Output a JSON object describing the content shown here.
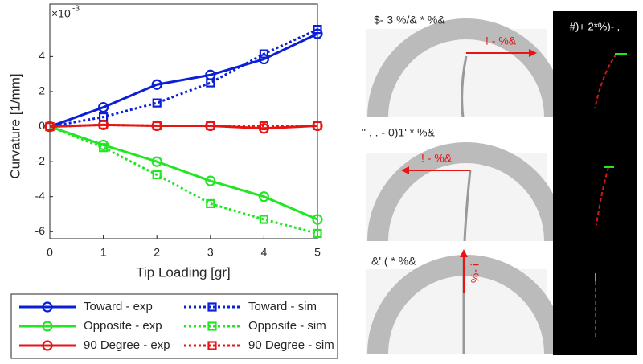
{
  "chart_data": {
    "type": "line",
    "xlabel": "Tip Loading [gr]",
    "ylabel": "Curvature [1/mm]",
    "y_scale_label": {
      "base": "×10",
      "exponent": "-3"
    },
    "x": [
      0,
      1,
      2,
      3,
      4,
      5
    ],
    "xlim": [
      0,
      5
    ],
    "xticks": [
      0,
      1,
      2,
      3,
      4,
      5
    ],
    "ylim": [
      -6.4,
      7
    ],
    "yticks": [
      -6,
      -4,
      -2,
      0,
      2,
      4
    ],
    "legend": "below",
    "series": [
      {
        "name": "Toward - exp",
        "color": "#0a1fd6",
        "marker": "circle",
        "line_style": "solid",
        "values": [
          0,
          1.1,
          2.4,
          2.95,
          3.85,
          5.3
        ]
      },
      {
        "name": "Toward - sim",
        "color": "#0a1fd6",
        "marker": "square",
        "line_style": "dotted",
        "values": [
          0,
          0.55,
          1.35,
          2.5,
          4.15,
          5.55
        ]
      },
      {
        "name": "Opposite - exp",
        "color": "#22e622",
        "marker": "circle",
        "line_style": "solid",
        "values": [
          0,
          -1.05,
          -2.0,
          -3.1,
          -4.0,
          -5.3
        ]
      },
      {
        "name": "Opposite - sim",
        "color": "#22e622",
        "marker": "square",
        "line_style": "dotted",
        "values": [
          0,
          -1.2,
          -2.75,
          -4.4,
          -5.3,
          -6.1
        ]
      },
      {
        "name": "90 Degree - exp",
        "color": "#e81414",
        "marker": "circle",
        "line_style": "solid",
        "values": [
          0,
          0.1,
          0.05,
          0.05,
          -0.1,
          0.05
        ]
      },
      {
        "name": "90 Degree - sim",
        "color": "#e81414",
        "marker": "square",
        "line_style": "dotted",
        "values": [
          0,
          0.1,
          0.05,
          0.05,
          0.05,
          0.05
        ]
      }
    ]
  },
  "photos": {
    "titles": [
      "$- 3 %/& * %&",
      "\" . . - 0)1' * %&",
      "&' ( * %&"
    ],
    "arrow_labels": [
      "! - %&",
      "! - %&",
      "%- i"
    ],
    "sim_title": "#)+ 2*%)- ,"
  }
}
